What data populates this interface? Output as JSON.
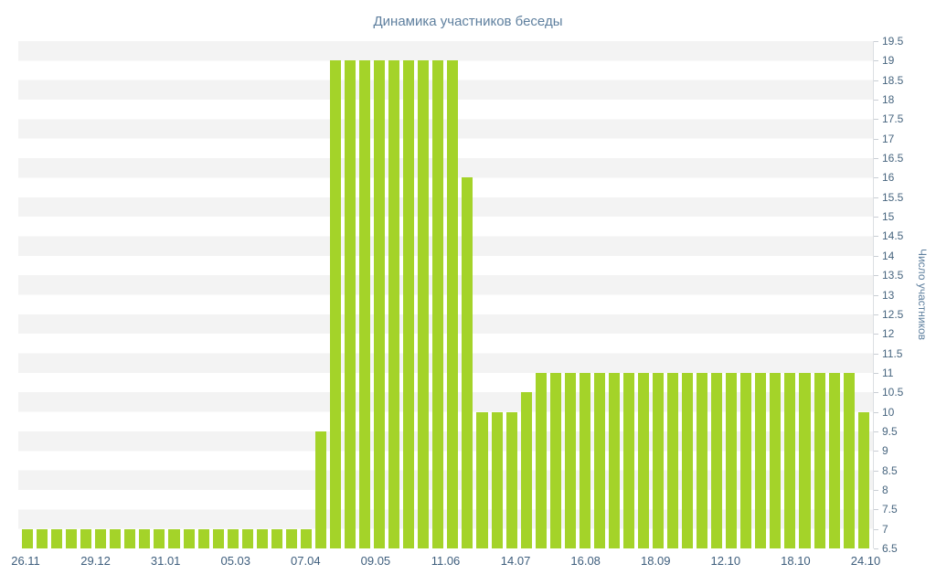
{
  "colors": {
    "bar": "#a4d329",
    "title_text": "#5e7f9e",
    "axis_text": "#47657f",
    "stripe": "#f3f3f3",
    "axis_line": "#dcdfe3"
  },
  "chart_data": {
    "type": "bar",
    "title": "Динамика участников беседы",
    "xlabel": "",
    "ylabel": "Число участников",
    "ylim": [
      6.5,
      19.5
    ],
    "ytick_step": 0.5,
    "grid": "horizontal-stripes",
    "legend": "none",
    "y_tick_labels": [
      "19.5",
      "19",
      "18.5",
      "18",
      "17.5",
      "17",
      "16.5",
      "16",
      "15.5",
      "15",
      "14.5",
      "14",
      "13.5",
      "13",
      "12.5",
      "12",
      "11.5",
      "11",
      "10.5",
      "10",
      "9.5",
      "9",
      "8.5",
      "8",
      "7.5",
      "7",
      "6.5"
    ],
    "x_tick_labels": [
      "26.11",
      "29.12",
      "31.01",
      "05.03",
      "07.04",
      "09.05",
      "11.06",
      "14.07",
      "16.08",
      "18.09",
      "12.10",
      "18.10",
      "24.10"
    ],
    "values": [
      7,
      7,
      7,
      7,
      7,
      7,
      7,
      7,
      7,
      7,
      7,
      7,
      7,
      7,
      7,
      7,
      7,
      7,
      7,
      7,
      9.5,
      19,
      19,
      19,
      19,
      19,
      19,
      19,
      19,
      19,
      16,
      10,
      10,
      10,
      10.5,
      11,
      11,
      11,
      11,
      11,
      11,
      11,
      11,
      11,
      11,
      11,
      11,
      11,
      11,
      11,
      11,
      11,
      11,
      11,
      11,
      11,
      11,
      10
    ]
  }
}
